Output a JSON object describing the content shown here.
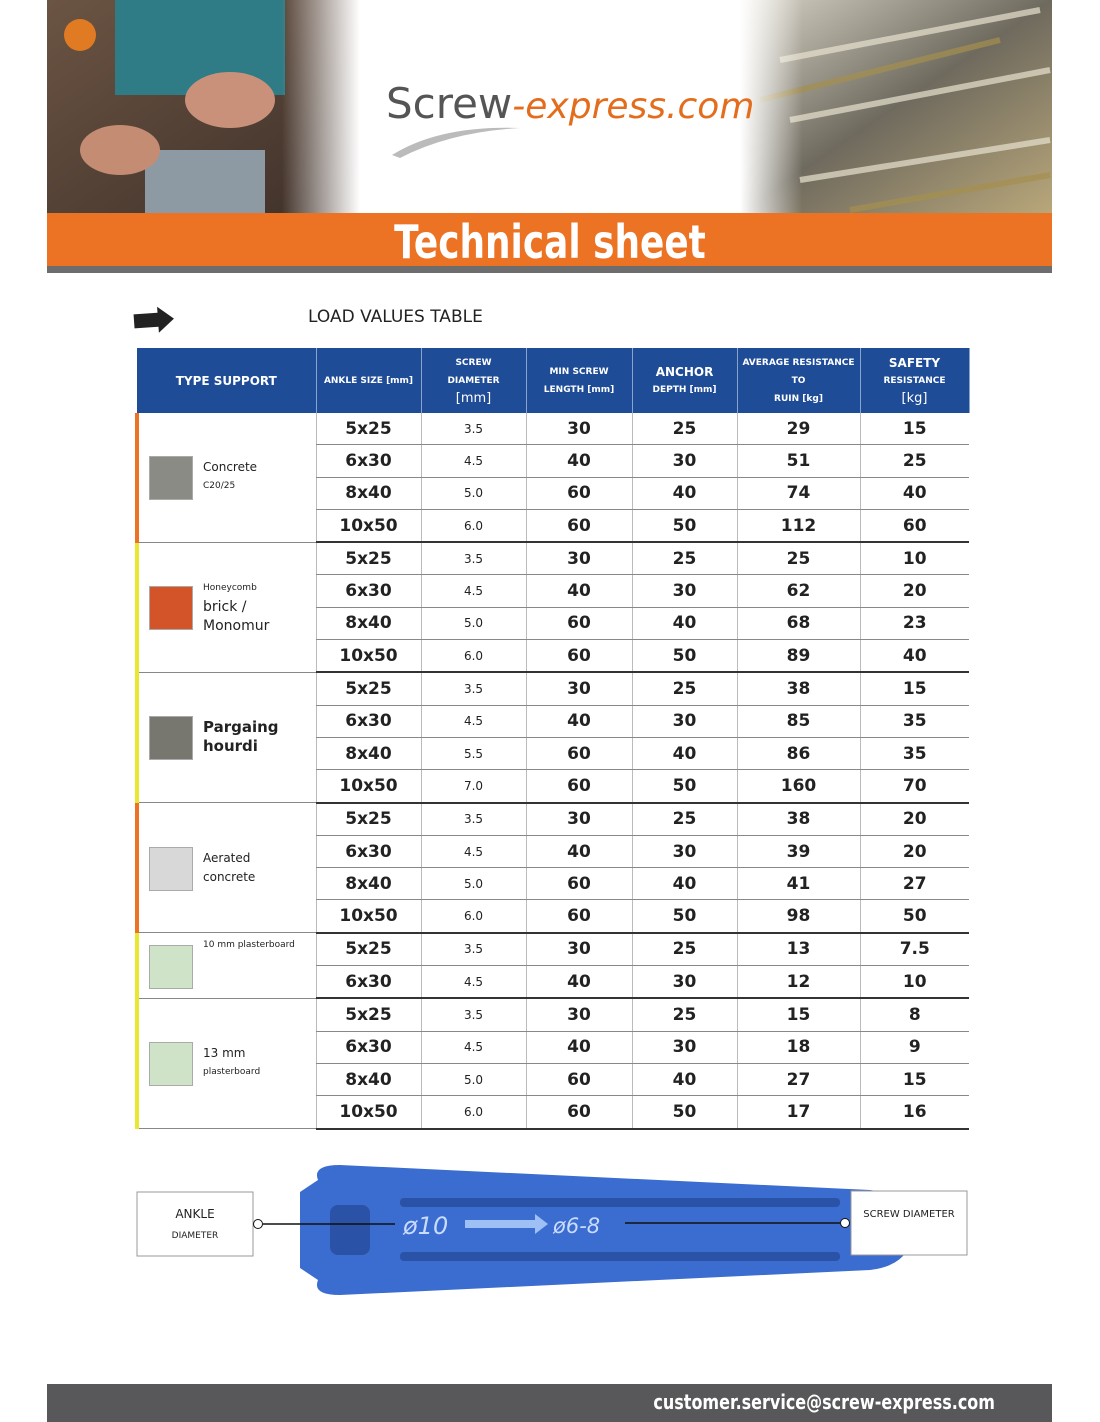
{
  "header": {
    "logo": {
      "brand": "Screw",
      "domain": "-express.com"
    },
    "title": "Technical sheet"
  },
  "section_title": "LOAD VALUES TABLE",
  "table": {
    "columns": [
      [
        "TYPE SUPPORT"
      ],
      [
        "ANKLE SIZE [mm]"
      ],
      [
        "SCREW",
        "DIAMETER",
        "[mm]"
      ],
      [
        "MIN SCREW",
        "LENGTH [mm]"
      ],
      [
        "ANCHOR",
        "DEPTH [mm]"
      ],
      [
        "AVERAGE RESISTANCE TO",
        "RUIN [kg]"
      ],
      [
        "SAFETY",
        "RESISTANCE",
        "[kg]"
      ]
    ],
    "groups": [
      {
        "support": [
          "Concrete",
          "C20/25"
        ],
        "rows": [
          [
            "5x25",
            "3.5",
            "30",
            "25",
            "29",
            "15"
          ],
          [
            "6x30",
            "4.5",
            "40",
            "30",
            "51",
            "25"
          ],
          [
            "8x40",
            "5.0",
            "60",
            "40",
            "74",
            "40"
          ],
          [
            "10x50",
            "6.0",
            "60",
            "50",
            "112",
            "60"
          ]
        ]
      },
      {
        "support": [
          "Honeycomb",
          "brick /",
          "Monomur"
        ],
        "rows": [
          [
            "5x25",
            "3.5",
            "30",
            "25",
            "25",
            "10"
          ],
          [
            "6x30",
            "4.5",
            "40",
            "30",
            "62",
            "20"
          ],
          [
            "8x40",
            "5.0",
            "60",
            "40",
            "68",
            "23"
          ],
          [
            "10x50",
            "6.0",
            "60",
            "50",
            "89",
            "40"
          ]
        ]
      },
      {
        "support": [
          "Pargaing",
          "hourdi"
        ],
        "rows": [
          [
            "5x25",
            "3.5",
            "30",
            "25",
            "38",
            "15"
          ],
          [
            "6x30",
            "4.5",
            "40",
            "30",
            "85",
            "35"
          ],
          [
            "8x40",
            "5.5",
            "60",
            "40",
            "86",
            "35"
          ],
          [
            "10x50",
            "7.0",
            "60",
            "50",
            "160",
            "70"
          ]
        ]
      },
      {
        "support": [
          "Aerated",
          "concrete"
        ],
        "rows": [
          [
            "5x25",
            "3.5",
            "30",
            "25",
            "38",
            "20"
          ],
          [
            "6x30",
            "4.5",
            "40",
            "30",
            "39",
            "20"
          ],
          [
            "8x40",
            "5.0",
            "60",
            "40",
            "41",
            "27"
          ],
          [
            "10x50",
            "6.0",
            "60",
            "50",
            "98",
            "50"
          ]
        ]
      },
      {
        "support": [
          "10 mm plasterboard"
        ],
        "rows": [
          [
            "5x25",
            "3.5",
            "30",
            "25",
            "13",
            "7.5"
          ],
          [
            "6x30",
            "4.5",
            "40",
            "30",
            "12",
            "10"
          ]
        ]
      },
      {
        "support": [
          "13 mm",
          "plasterboard"
        ],
        "rows": [
          [
            "5x25",
            "3.5",
            "30",
            "25",
            "15",
            "8"
          ],
          [
            "6x30",
            "4.5",
            "40",
            "30",
            "18",
            "9"
          ],
          [
            "8x40",
            "5.0",
            "60",
            "40",
            "27",
            "15"
          ],
          [
            "10x50",
            "6.0",
            "60",
            "50",
            "17",
            "16"
          ]
        ]
      }
    ]
  },
  "diagram": {
    "left_label": [
      "ANKLE",
      "DIAMETER"
    ],
    "right_label": "SCREW DIAMETER",
    "anchor_markings": [
      "ø10",
      "ø6-8"
    ]
  },
  "footer": {
    "email": "customer.service@screw-express.com"
  }
}
